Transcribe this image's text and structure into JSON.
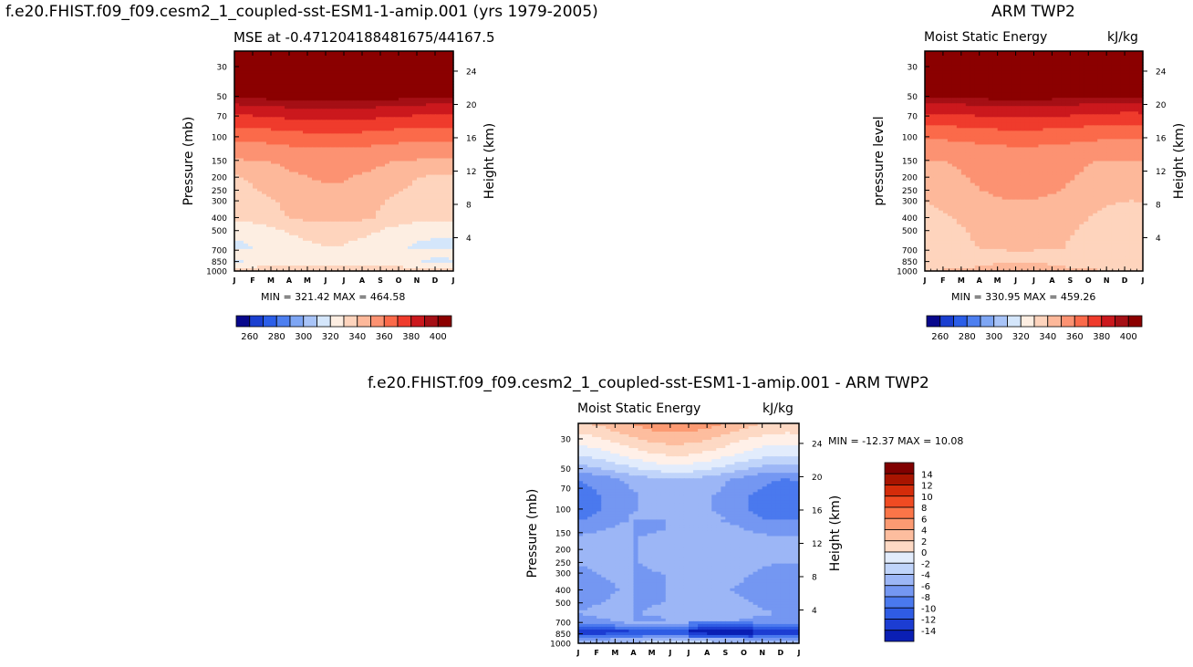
{
  "figure": {
    "model_title": "f.e20.FHIST.f09_f09.cesm2_1_coupled-sst-ESM1-1-amip.001 (yrs 1979-2005)",
    "obs_title": "ARM TWP2",
    "diff_title": "f.e20.FHIST.f09_f09.cesm2_1_coupled-sst-ESM1-1-amip.001 - ARM TWP2"
  },
  "colors": {
    "mse_levels": [
      "#08088c",
      "#1a3fd0",
      "#2b5ee8",
      "#4d7ff0",
      "#7ea6f4",
      "#a8c4f8",
      "#d4e6fb",
      "#fdeee2",
      "#fed4bd",
      "#fdb89a",
      "#fc9272",
      "#fb6a4a",
      "#ef3b2c",
      "#cb181d",
      "#a50f15",
      "#8b0000"
    ],
    "diff_levels": [
      "#000080",
      "#0a1fb4",
      "#1c3dd2",
      "#2f5ce4",
      "#4a79ee",
      "#7497f2",
      "#9cb6f6",
      "#c0d4fa",
      "#e2ecfc",
      "#fff0e8",
      "#fdd9c4",
      "#fdbd9e",
      "#fc9a72",
      "#fb7548",
      "#f04b22",
      "#d42c0a",
      "#a81400",
      "#800000"
    ]
  },
  "chart_data": [
    {
      "type": "heatmap",
      "id": "model",
      "title": "MSE at -0.471204188481675/44167.5",
      "subtitle_left": "",
      "subtitle_right": "",
      "xlabel": "",
      "ylabel": "Pressure (mb)",
      "y2label": "Height (km)",
      "x_ticks": [
        "J",
        "F",
        "M",
        "A",
        "M",
        "J",
        "J",
        "A",
        "S",
        "O",
        "N",
        "D",
        "J"
      ],
      "y_ticks": [
        30,
        50,
        70,
        100,
        150,
        200,
        250,
        300,
        400,
        500,
        700,
        850,
        1000
      ],
      "y2_ticks": [
        24,
        20,
        16,
        12,
        8,
        4
      ],
      "ylim": [
        1000,
        23
      ],
      "minmax": "MIN = 321.42  MAX = 464.58",
      "levels": [
        260,
        270,
        280,
        290,
        300,
        310,
        320,
        330,
        340,
        350,
        360,
        370,
        380,
        390,
        400
      ],
      "label_levels": [
        "260",
        "280",
        "300",
        "320",
        "340",
        "360",
        "380",
        "400"
      ],
      "profile": {
        "p": [
          20,
          30,
          45,
          55,
          65,
          75,
          85,
          100,
          130,
          160,
          200,
          250,
          300,
          400,
          480,
          600,
          720,
          850,
          920,
          1000
        ],
        "v": [
          470,
          455,
          420,
          395,
          385,
          378,
          372,
          365,
          355,
          350,
          345,
          343,
          340,
          338,
          330,
          325,
          323,
          322,
          330,
          338
        ]
      },
      "seasonal_amp": 6
    },
    {
      "type": "heatmap",
      "id": "obs",
      "title": "",
      "subtitle_left": "Moist Static Energy",
      "subtitle_right": "kJ/kg",
      "xlabel": "",
      "ylabel": "pressure level",
      "y2label": "Height (km)",
      "x_ticks": [
        "J",
        "F",
        "M",
        "A",
        "M",
        "J",
        "J",
        "A",
        "S",
        "O",
        "N",
        "D",
        "J"
      ],
      "y_ticks": [
        30,
        50,
        70,
        100,
        150,
        200,
        250,
        300,
        400,
        500,
        700,
        850,
        1000
      ],
      "y2_ticks": [
        24,
        20,
        16,
        12,
        8,
        4
      ],
      "ylim": [
        1000,
        23
      ],
      "minmax": "MIN = 330.95  MAX = 459.26",
      "levels": [
        260,
        270,
        280,
        290,
        300,
        310,
        320,
        330,
        340,
        350,
        360,
        370,
        380,
        390,
        400
      ],
      "label_levels": [
        "260",
        "280",
        "300",
        "320",
        "340",
        "360",
        "380",
        "400"
      ],
      "profile": {
        "p": [
          20,
          30,
          45,
          55,
          65,
          75,
          85,
          100,
          130,
          160,
          200,
          250,
          300,
          400,
          500,
          600,
          720,
          850,
          920,
          1000
        ],
        "v": [
          470,
          455,
          418,
          393,
          383,
          376,
          370,
          363,
          355,
          352,
          350,
          348,
          345,
          342,
          340,
          339,
          338,
          338,
          339,
          342
        ]
      },
      "seasonal_amp": 5
    },
    {
      "type": "heatmap",
      "id": "diff",
      "title": "",
      "subtitle_left": "Moist Static Energy",
      "subtitle_right": "kJ/kg",
      "xlabel": "",
      "ylabel": "Pressure (mb)",
      "y2label": "Height (km)",
      "x_ticks": [
        "J",
        "F",
        "M",
        "A",
        "M",
        "J",
        "J",
        "A",
        "S",
        "O",
        "N",
        "D",
        "J"
      ],
      "y_ticks": [
        30,
        50,
        70,
        100,
        150,
        200,
        250,
        300,
        400,
        500,
        700,
        850,
        1000
      ],
      "y2_ticks": [
        24,
        20,
        16,
        12,
        8,
        4
      ],
      "ylim": [
        1000,
        23
      ],
      "minmax": "MIN = -12.37  MAX =  10.08",
      "levels": [
        -14,
        -12,
        -10,
        -8,
        -6,
        -4,
        -2,
        0,
        2,
        4,
        6,
        8,
        10,
        12,
        14
      ],
      "label_levels": [
        "14",
        "12",
        "10",
        "8",
        "6",
        "4",
        "2",
        "0",
        "-2",
        "-4",
        "-6",
        "-8",
        "-10",
        "-12",
        "-14"
      ],
      "profile": {
        "p": [
          20,
          30,
          40,
          50,
          60,
          80,
          100,
          130,
          160,
          250,
          400,
          600,
          700,
          760,
          820,
          860,
          920,
          1000
        ],
        "v": [
          9,
          5,
          2,
          -1,
          -4,
          -5,
          -5,
          -4,
          -3,
          -3,
          -4,
          -3,
          -4,
          -7,
          -11,
          -9,
          -4,
          -2
        ]
      },
      "seasonal_amp": 2
    }
  ]
}
